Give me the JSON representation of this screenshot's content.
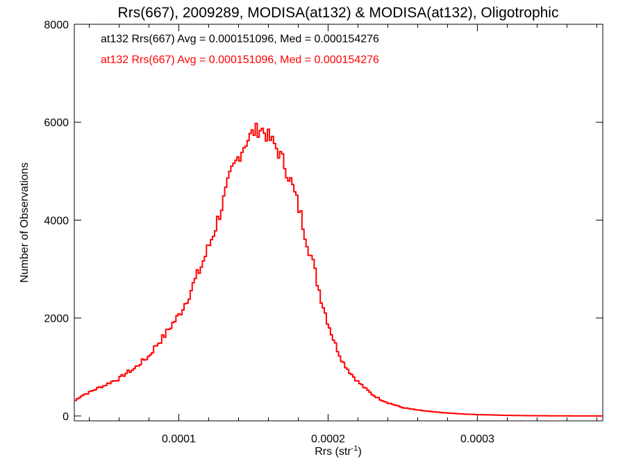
{
  "chart_data": {
    "type": "histogram",
    "title": "Rrs(667), 2009289, MODISA(at132) & MODISA(at132), Oligotrophic",
    "xlabel": "Rrs (str",
    "xlabel_sup": "-1",
    "xlabel_suffix": ")",
    "ylabel": "Number of Observations",
    "xlim": [
      3e-05,
      0.000384
    ],
    "ylim": [
      -100,
      8000
    ],
    "x_ticks": [
      0.0001,
      0.0002,
      0.0003
    ],
    "x_tick_labels": [
      "0.0001",
      "0.0002",
      "0.0003"
    ],
    "y_ticks": [
      0,
      2000,
      4000,
      6000,
      8000
    ],
    "y_tick_labels": [
      "0",
      "2000",
      "4000",
      "6000",
      "8000"
    ],
    "annotations": [
      {
        "text": "at132 Rrs(667) Avg = 0.000151096, Med = 0.000154276",
        "color": "#000000"
      },
      {
        "text": "at132 Rrs(667) Avg = 0.000151096, Med = 0.000154276",
        "color": "#ff0000"
      }
    ],
    "series": [
      {
        "color": "#ff0000",
        "x": [
          3e-05,
          3.5e-05,
          4e-05,
          4.5e-05,
          5e-05,
          5.5e-05,
          6e-05,
          6.5e-05,
          7e-05,
          7.5e-05,
          8e-05,
          8.5e-05,
          9e-05,
          9.5e-05,
          0.0001,
          0.000105,
          0.00011,
          0.000115,
          0.00012,
          0.000125,
          0.00013,
          0.000135,
          0.00014,
          0.000145,
          0.00015,
          0.000155,
          0.00016,
          0.000165,
          0.00017,
          0.000175,
          0.00018,
          0.000185,
          0.00019,
          0.000195,
          0.0002,
          0.000205,
          0.00021,
          0.000215,
          0.00022,
          0.000225,
          0.00023,
          0.000235,
          0.00024,
          0.000245,
          0.00025,
          0.00026,
          0.00027,
          0.00028,
          0.00029,
          0.0003,
          0.00031,
          0.00032,
          0.00033,
          0.00034,
          0.00035,
          0.00036,
          0.00037,
          0.00038,
          0.000384
        ],
        "y": [
          300,
          420,
          480,
          560,
          620,
          700,
          760,
          880,
          960,
          1100,
          1220,
          1450,
          1620,
          1850,
          2050,
          2350,
          2700,
          3050,
          3450,
          3900,
          4400,
          4950,
          5300,
          5600,
          5800,
          5880,
          5700,
          5500,
          5200,
          4800,
          4300,
          3700,
          3100,
          2450,
          1900,
          1450,
          1100,
          880,
          700,
          560,
          430,
          340,
          270,
          220,
          170,
          120,
          85,
          60,
          40,
          28,
          20,
          12,
          8,
          5,
          3,
          2,
          1,
          0,
          0
        ]
      }
    ]
  }
}
